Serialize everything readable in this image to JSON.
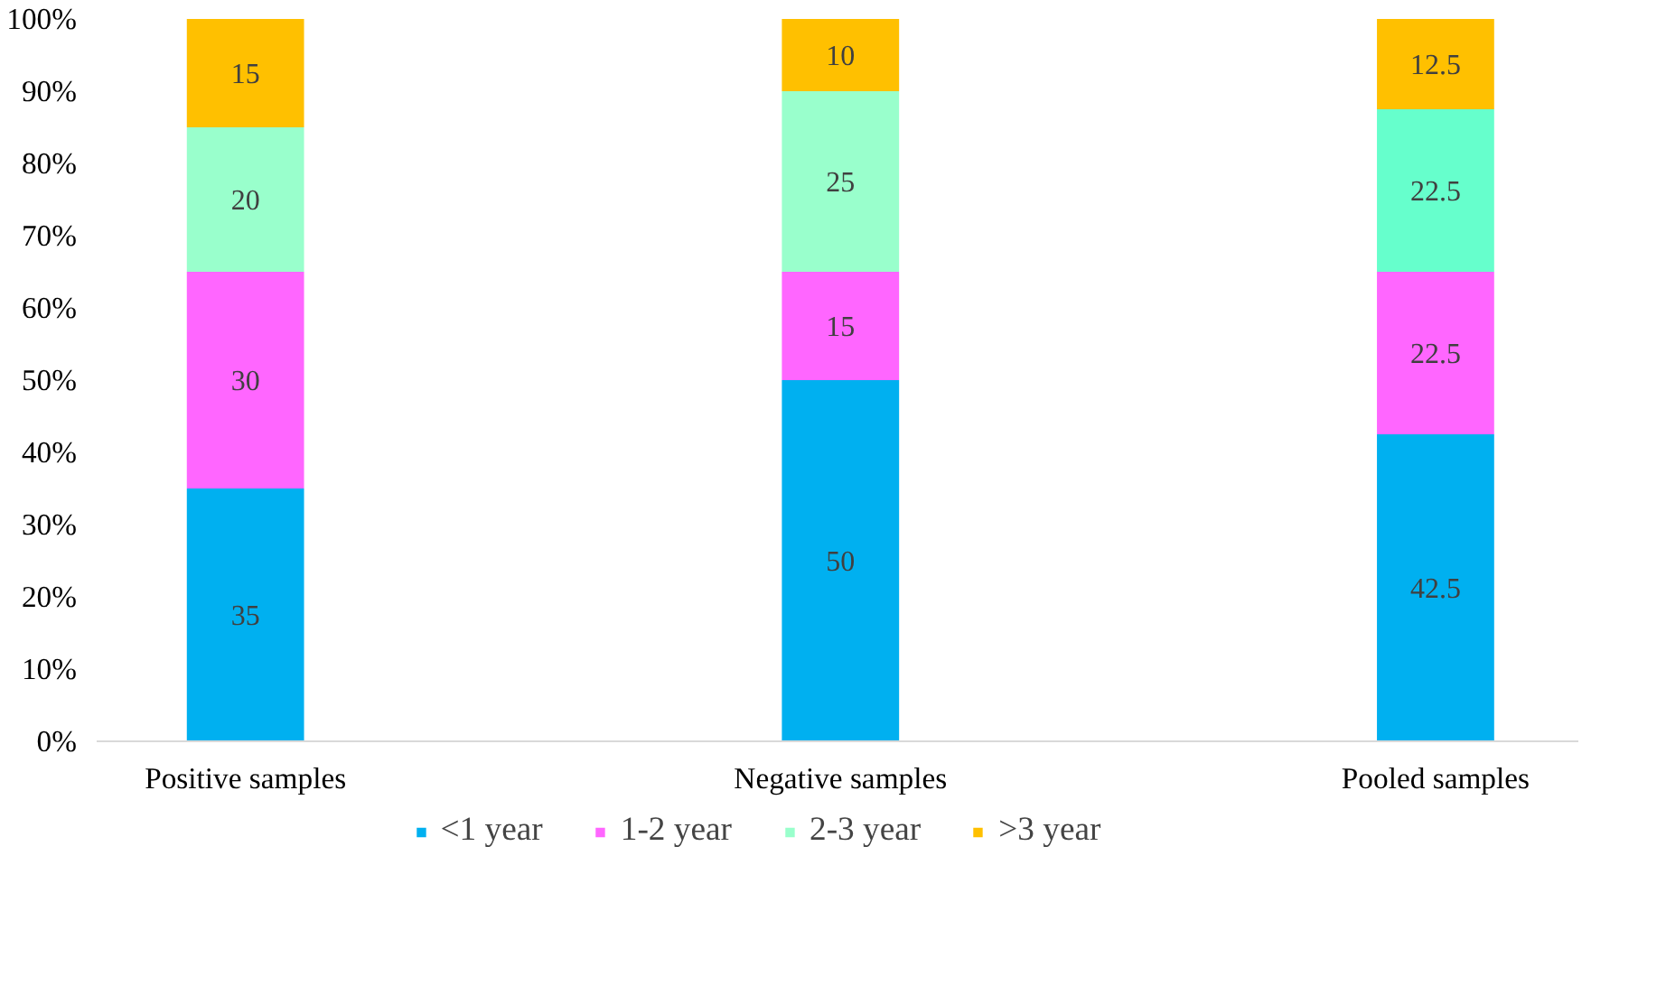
{
  "chart_data": {
    "type": "bar",
    "stacked": true,
    "categories": [
      "Positive samples",
      "Negative samples",
      "Pooled samples"
    ],
    "series": [
      {
        "name": "<1 year",
        "color": "#00b0f0",
        "values": [
          35,
          50,
          42.5
        ]
      },
      {
        "name": "1-2 year",
        "color": "#ff66ff",
        "values": [
          30,
          15,
          22.5
        ]
      },
      {
        "name": "2-3 year",
        "color": "#99ffcc",
        "colors": [
          "#99ffcc",
          "#99ffcc",
          "#66ffcc"
        ],
        "values": [
          20,
          25,
          22.5
        ]
      },
      {
        "name": ">3 year",
        "color": "#ffc000",
        "values": [
          15,
          10,
          12.5
        ]
      }
    ],
    "ylim": [
      0,
      100
    ],
    "yticks": [
      {
        "value": 0,
        "label": "0%"
      },
      {
        "value": 10,
        "label": "10%"
      },
      {
        "value": 20,
        "label": "20%"
      },
      {
        "value": 30,
        "label": "30%"
      },
      {
        "value": 40,
        "label": "40%"
      },
      {
        "value": 50,
        "label": "50%"
      },
      {
        "value": 60,
        "label": "60%"
      },
      {
        "value": 70,
        "label": "70%"
      },
      {
        "value": 80,
        "label": "80%"
      },
      {
        "value": 90,
        "label": "90%"
      },
      {
        "value": 100,
        "label": "100%"
      }
    ],
    "data_labels": true,
    "grid": false,
    "legend": "bottom"
  }
}
